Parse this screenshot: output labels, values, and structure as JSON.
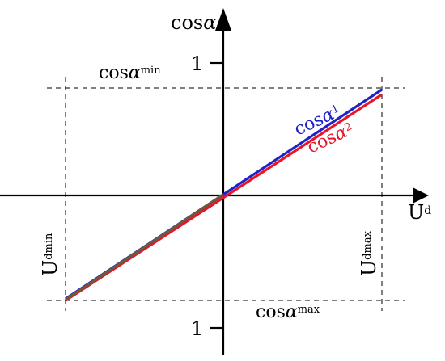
{
  "axes": {
    "y_label_base": "cos",
    "y_label_symbol": "α",
    "x_label_base": "U",
    "x_label_sub": "d",
    "tick_top": "1",
    "tick_bottom": "1"
  },
  "annotations": {
    "cos_min_base": "cos",
    "cos_min_symbol": "α",
    "cos_min_sub": "min",
    "cos_max_base": "cos",
    "cos_max_symbol": "α",
    "cos_max_sub": "max",
    "udmin_base": "U",
    "udmin_sub": "dmin",
    "udmax_base": "U",
    "udmax_sub": "dmax"
  },
  "series": [
    {
      "base": "cos",
      "symbol": "α",
      "sub": "1",
      "color": "#1e22c8"
    },
    {
      "base": "cos",
      "symbol": "α",
      "sub": "2",
      "color": "#e8142a"
    }
  ],
  "colors": {
    "axis": "#000000",
    "guides": "#000000",
    "line1": "#1e22c8",
    "line2": "#e8142a",
    "overlap": "#6b5a3c"
  }
}
